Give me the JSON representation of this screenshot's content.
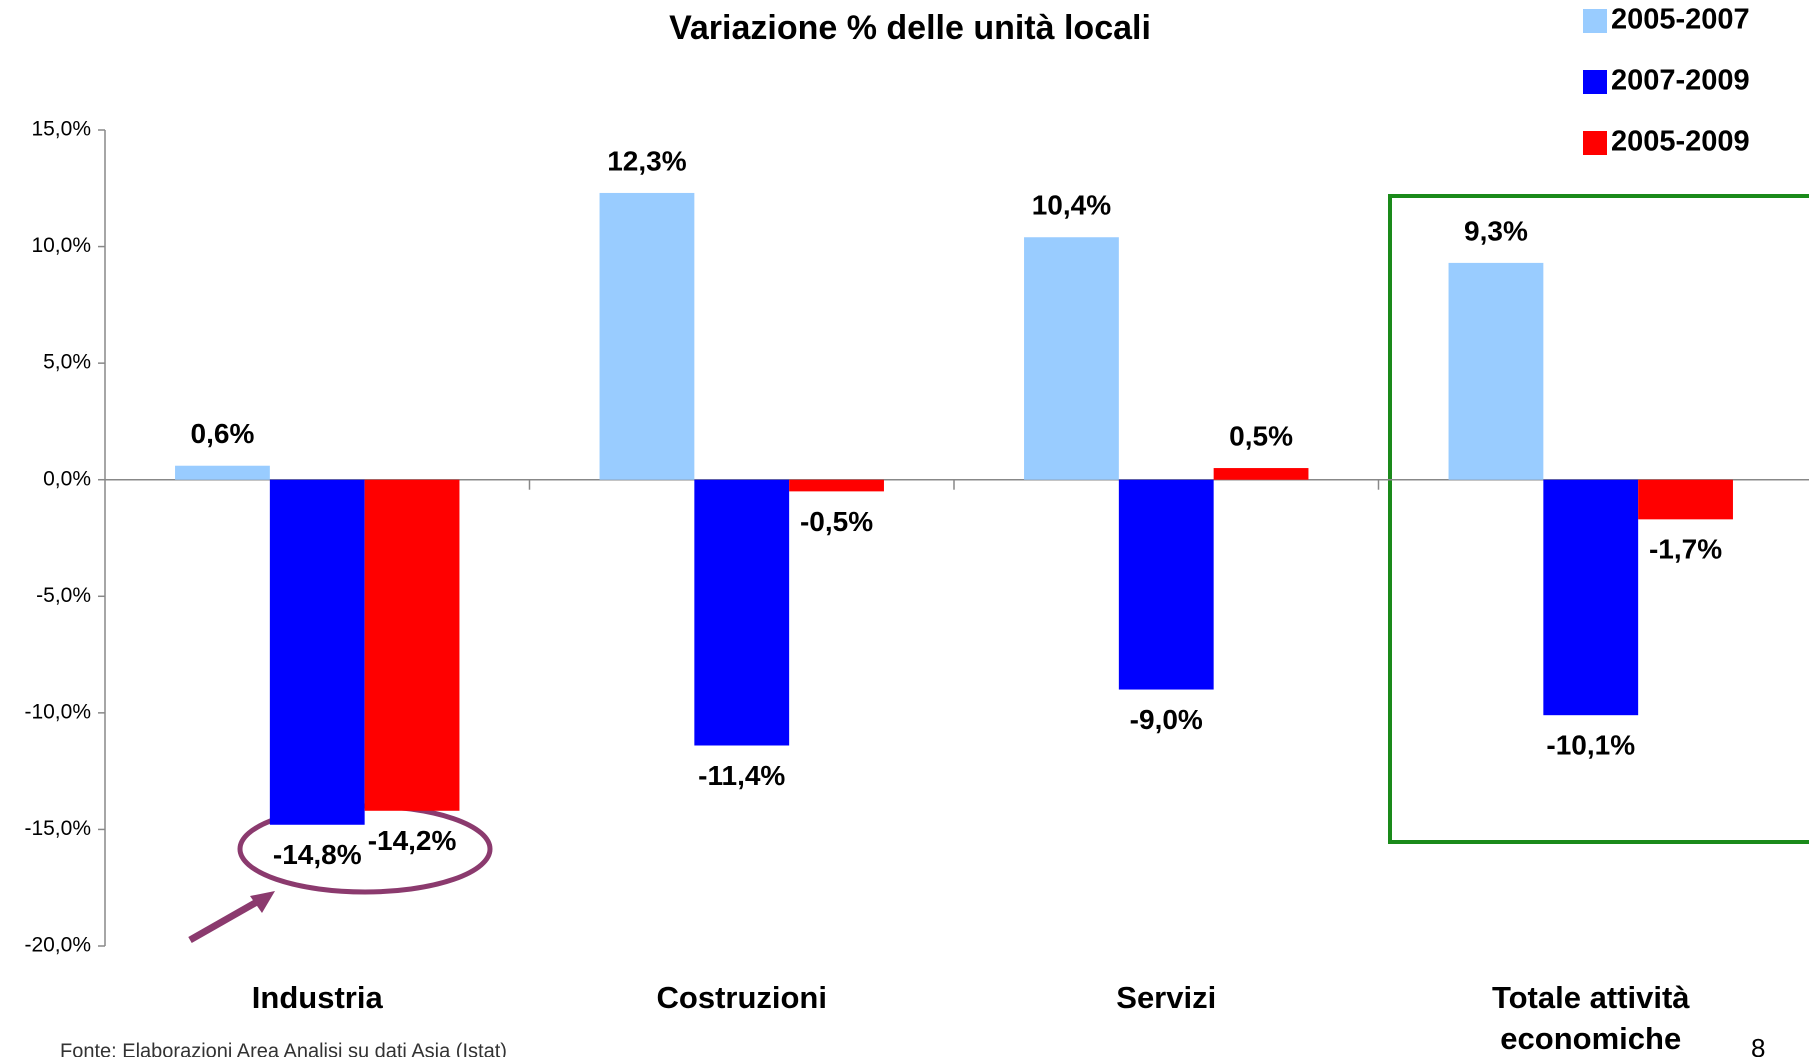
{
  "chart_data": {
    "type": "bar",
    "title": "Variazione % delle unità locali",
    "categories": [
      "Industria",
      "Costruzioni",
      "Servizi",
      "Totale attività economiche"
    ],
    "series": [
      {
        "name": "2005-2007",
        "color": "#99ccff",
        "values": [
          0.6,
          12.3,
          10.4,
          9.3
        ],
        "value_labels": [
          "0,6%",
          "12,3%",
          "10,4%",
          "9,3%"
        ]
      },
      {
        "name": "2007-2009",
        "color": "#0000ff",
        "values": [
          -14.8,
          -11.4,
          -9.0,
          -10.1
        ],
        "value_labels": [
          "-14,8%",
          "-11,4%",
          "-9,0%",
          "-10,1%"
        ]
      },
      {
        "name": "2005-2009",
        "color": "#ff0000",
        "values": [
          -14.2,
          -0.5,
          0.5,
          -1.7
        ],
        "value_labels": [
          "-14,2%",
          "-0,5%",
          "0,5%",
          "-1,7%"
        ]
      }
    ],
    "ylim": [
      -20,
      15
    ],
    "yticks": [
      {
        "value": -20,
        "label": "-20,0%"
      },
      {
        "value": -15,
        "label": "-15,0%"
      },
      {
        "value": -10,
        "label": "-10,0%"
      },
      {
        "value": -5,
        "label": "-5,0%"
      },
      {
        "value": 0,
        "label": "0,0%"
      },
      {
        "value": 5,
        "label": "5,0%"
      },
      {
        "value": 10,
        "label": "10,0%"
      },
      {
        "value": 15,
        "label": "15,0%"
      }
    ],
    "legend": "top-right",
    "source": "Fonte: Elaborazioni Area Analisi su dati Asia (Istat)",
    "page_number": "8"
  }
}
